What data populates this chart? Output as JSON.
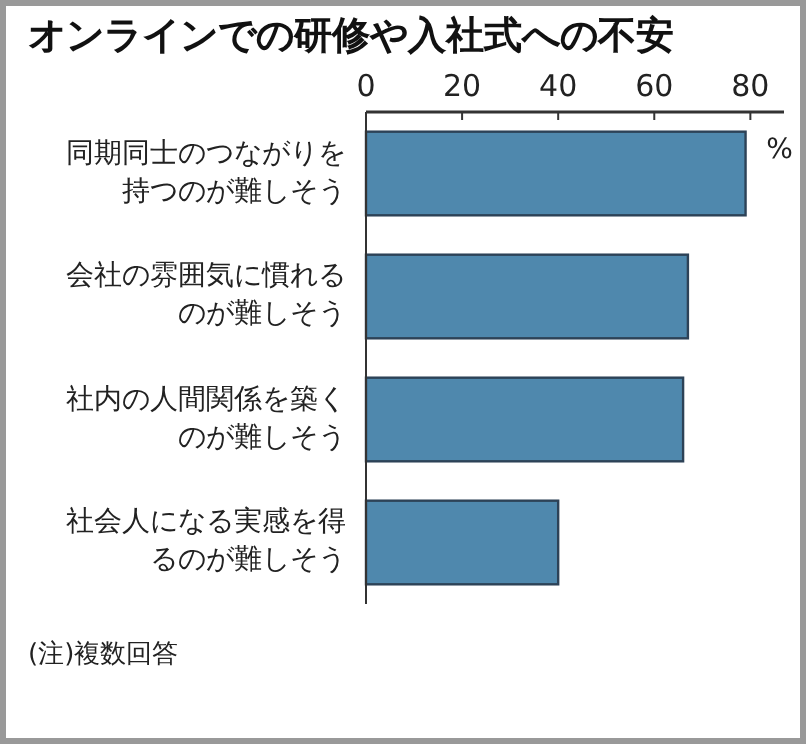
{
  "chart_data": {
    "type": "bar",
    "orientation": "horizontal",
    "title": "オンラインでの研修や入社式への不安",
    "xlabel": "%",
    "categories": [
      "同期同士のつながりを持つのが難しそう",
      "会社の雰囲気に慣れるのが難しそう",
      "社内の人間関係を築くのが難しそう",
      "社会人になる実感を得るのが難しそう"
    ],
    "values": [
      79,
      67,
      66,
      40
    ],
    "color": "#4f88ad",
    "xlim": [
      0,
      87
    ],
    "xticks": [
      0,
      20,
      40,
      60,
      80
    ],
    "grid": false,
    "annotations": [
      "(注)複数回答"
    ]
  }
}
